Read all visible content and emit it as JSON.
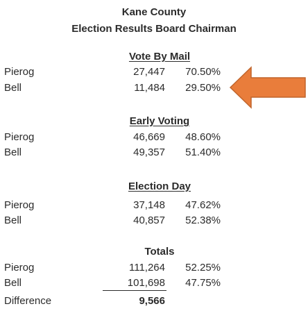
{
  "header": {
    "title": "Kane County",
    "subtitle": "Election Results Board Chairman"
  },
  "sections": [
    {
      "title": "Vote By Mail",
      "rows": [
        {
          "name": "Pierog",
          "votes": "27,447",
          "pct": "70.50%"
        },
        {
          "name": "Bell",
          "votes": "11,484",
          "pct": "29.50%"
        }
      ]
    },
    {
      "title": "Early Voting",
      "rows": [
        {
          "name": "Pierog",
          "votes": "46,669",
          "pct": "48.60%"
        },
        {
          "name": "Bell",
          "votes": "49,357",
          "pct": "51.40%"
        }
      ]
    },
    {
      "title": "Election Day",
      "rows": [
        {
          "name": "Pierog",
          "votes": "37,148",
          "pct": "47.62%"
        },
        {
          "name": "Bell",
          "votes": "40,857",
          "pct": "52.38%"
        }
      ]
    },
    {
      "title": "Totals",
      "rows": [
        {
          "name": "Pierog",
          "votes": "111,264",
          "pct": "52.25%"
        },
        {
          "name": "Bell",
          "votes": "101,698",
          "pct": "47.75%"
        }
      ]
    }
  ],
  "difference": {
    "label": "Difference",
    "value": "9,566"
  },
  "arrow": {
    "icon": "left-arrow-icon",
    "color": "#E97D3B",
    "outline": "#C0652C"
  }
}
